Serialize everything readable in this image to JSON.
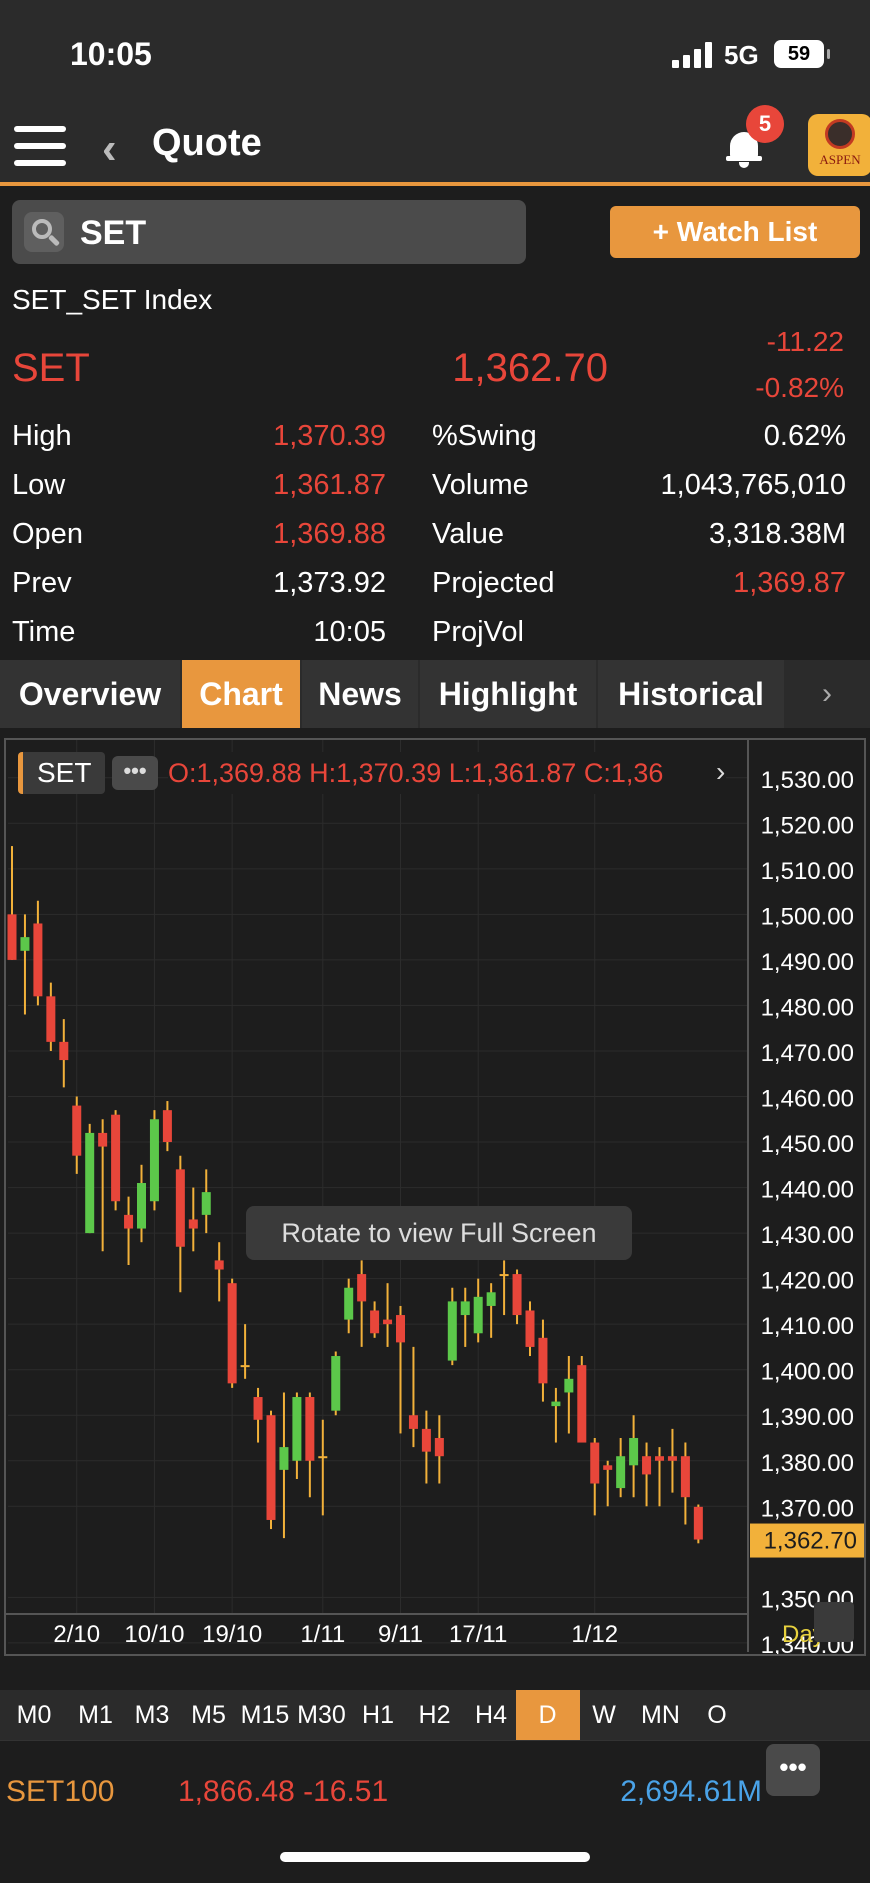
{
  "status_bar": {
    "time": "10:05",
    "network": "5G",
    "battery": "59"
  },
  "nav": {
    "title": "Quote",
    "notification_count": "5",
    "logo_text": "ASPEN"
  },
  "search": {
    "value": "SET"
  },
  "watchlist_button": "+ Watch List",
  "quote": {
    "full_name": "SET_SET Index",
    "symbol": "SET",
    "last": "1,362.70",
    "change": "-11.22",
    "change_pct": "-0.82%"
  },
  "stats": {
    "left": [
      {
        "label": "High",
        "value": "1,370.39"
      },
      {
        "label": "Low",
        "value": "1,361.87"
      },
      {
        "label": "Open",
        "value": "1,369.88"
      },
      {
        "label": "Prev",
        "value": "1,373.92"
      },
      {
        "label": "Time",
        "value": "10:05"
      }
    ],
    "right": [
      {
        "label": "%Swing",
        "value": "0.62%"
      },
      {
        "label": "Volume",
        "value": "1,043,765,010"
      },
      {
        "label": "Value",
        "value": "3,318.38M"
      },
      {
        "label": "Projected",
        "value": "1,369.87"
      },
      {
        "label": "ProjVol",
        "value": ""
      }
    ]
  },
  "tabs": [
    {
      "label": "Overview"
    },
    {
      "label": "Chart"
    },
    {
      "label": "News"
    },
    {
      "label": "Highlight"
    },
    {
      "label": "Historical"
    }
  ],
  "chart_legend": {
    "symbol": "SET",
    "dots": "•••",
    "ohlc": "O:1,369.88  H:1,370.39  L:1,361.87  C:1,36"
  },
  "toast": "Rotate to view Full Screen",
  "timeframes": [
    "M0",
    "M1",
    "M3",
    "M5",
    "M15",
    "M30",
    "H1",
    "H2",
    "H4",
    "D",
    "W",
    "MN",
    "O"
  ],
  "footer": {
    "symbol": "SET100",
    "value": "1,866.48 -16.51",
    "volume": "2,694.61M",
    "more": "•••"
  },
  "colors": {
    "accent": "#e8973e",
    "down": "#e8463a",
    "up": "#5cc84a",
    "doji": "#f2b13a",
    "link": "#4aa3e8"
  },
  "chart_data": {
    "type": "candlestick",
    "interval_label": "Day",
    "y_ticks": [
      1530,
      1520,
      1510,
      1500,
      1490,
      1480,
      1470,
      1460,
      1450,
      1440,
      1430,
      1420,
      1410,
      1400,
      1390,
      1380,
      1370,
      1350,
      1340
    ],
    "ylim": [
      1338,
      1535
    ],
    "last_price_label": "1,362.70",
    "last_price": 1362.7,
    "x_labels": [
      {
        "label": "2/10",
        "index": 5
      },
      {
        "label": "10/10",
        "index": 11
      },
      {
        "label": "19/10",
        "index": 17
      },
      {
        "label": "1/11",
        "index": 24
      },
      {
        "label": "9/11",
        "index": 30
      },
      {
        "label": "17/11",
        "index": 36
      },
      {
        "label": "1/12",
        "index": 45
      }
    ],
    "candles": [
      {
        "o": 1500,
        "h": 1515,
        "l": 1490,
        "c": 1490
      },
      {
        "o": 1492,
        "h": 1500,
        "l": 1478,
        "c": 1495
      },
      {
        "o": 1498,
        "h": 1503,
        "l": 1480,
        "c": 1482
      },
      {
        "o": 1482,
        "h": 1485,
        "l": 1470,
        "c": 1472
      },
      {
        "o": 1472,
        "h": 1477,
        "l": 1462,
        "c": 1468
      },
      {
        "o": 1458,
        "h": 1460,
        "l": 1443,
        "c": 1447
      },
      {
        "o": 1430,
        "h": 1454,
        "l": 1430,
        "c": 1452
      },
      {
        "o": 1452,
        "h": 1455,
        "l": 1426,
        "c": 1449
      },
      {
        "o": 1456,
        "h": 1457,
        "l": 1435,
        "c": 1437
      },
      {
        "o": 1434,
        "h": 1438,
        "l": 1423,
        "c": 1431
      },
      {
        "o": 1431,
        "h": 1445,
        "l": 1428,
        "c": 1441
      },
      {
        "o": 1437,
        "h": 1457,
        "l": 1435,
        "c": 1455
      },
      {
        "o": 1457,
        "h": 1459,
        "l": 1448,
        "c": 1450
      },
      {
        "o": 1444,
        "h": 1447,
        "l": 1417,
        "c": 1427
      },
      {
        "o": 1433,
        "h": 1440,
        "l": 1426,
        "c": 1431
      },
      {
        "o": 1434,
        "h": 1444,
        "l": 1430,
        "c": 1439
      },
      {
        "o": 1424,
        "h": 1428,
        "l": 1415,
        "c": 1422
      },
      {
        "o": 1419,
        "h": 1420,
        "l": 1396,
        "c": 1397
      },
      {
        "o": 1401,
        "h": 1410,
        "l": 1398,
        "c": 1401
      },
      {
        "o": 1394,
        "h": 1396,
        "l": 1384,
        "c": 1389
      },
      {
        "o": 1390,
        "h": 1391,
        "l": 1365,
        "c": 1367
      },
      {
        "o": 1378,
        "h": 1395,
        "l": 1363,
        "c": 1383
      },
      {
        "o": 1380,
        "h": 1395,
        "l": 1376,
        "c": 1394
      },
      {
        "o": 1394,
        "h": 1395,
        "l": 1372,
        "c": 1380
      },
      {
        "o": 1381,
        "h": 1389,
        "l": 1368,
        "c": 1381
      },
      {
        "o": 1391,
        "h": 1404,
        "l": 1390,
        "c": 1403
      },
      {
        "o": 1411,
        "h": 1420,
        "l": 1408,
        "c": 1418
      },
      {
        "o": 1421,
        "h": 1424,
        "l": 1405,
        "c": 1415
      },
      {
        "o": 1413,
        "h": 1415,
        "l": 1407,
        "c": 1408
      },
      {
        "o": 1411,
        "h": 1419,
        "l": 1405,
        "c": 1410
      },
      {
        "o": 1412,
        "h": 1414,
        "l": 1386,
        "c": 1406
      },
      {
        "o": 1390,
        "h": 1405,
        "l": 1383,
        "c": 1387
      },
      {
        "o": 1387,
        "h": 1391,
        "l": 1375,
        "c": 1382
      },
      {
        "o": 1385,
        "h": 1390,
        "l": 1375,
        "c": 1381
      },
      {
        "o": 1402,
        "h": 1418,
        "l": 1401,
        "c": 1415
      },
      {
        "o": 1412,
        "h": 1418,
        "l": 1405,
        "c": 1415
      },
      {
        "o": 1408,
        "h": 1420,
        "l": 1406,
        "c": 1416
      },
      {
        "o": 1414,
        "h": 1419,
        "l": 1407,
        "c": 1417
      },
      {
        "o": 1421,
        "h": 1424,
        "l": 1412,
        "c": 1421
      },
      {
        "o": 1421,
        "h": 1422,
        "l": 1410,
        "c": 1412
      },
      {
        "o": 1413,
        "h": 1415,
        "l": 1403,
        "c": 1405
      },
      {
        "o": 1407,
        "h": 1411,
        "l": 1393,
        "c": 1397
      },
      {
        "o": 1392,
        "h": 1396,
        "l": 1384,
        "c": 1393
      },
      {
        "o": 1395,
        "h": 1403,
        "l": 1386,
        "c": 1398
      },
      {
        "o": 1401,
        "h": 1403,
        "l": 1384,
        "c": 1384
      },
      {
        "o": 1384,
        "h": 1385,
        "l": 1368,
        "c": 1375
      },
      {
        "o": 1379,
        "h": 1380,
        "l": 1370,
        "c": 1378
      },
      {
        "o": 1374,
        "h": 1385,
        "l": 1372,
        "c": 1381
      },
      {
        "o": 1379,
        "h": 1390,
        "l": 1372,
        "c": 1385
      },
      {
        "o": 1381,
        "h": 1384,
        "l": 1370,
        "c": 1377
      },
      {
        "o": 1381,
        "h": 1383,
        "l": 1370,
        "c": 1380
      },
      {
        "o": 1381,
        "h": 1387,
        "l": 1373,
        "c": 1380
      },
      {
        "o": 1381,
        "h": 1384,
        "l": 1366,
        "c": 1372
      },
      {
        "o": 1369.88,
        "h": 1370.39,
        "l": 1361.87,
        "c": 1362.7
      }
    ]
  }
}
